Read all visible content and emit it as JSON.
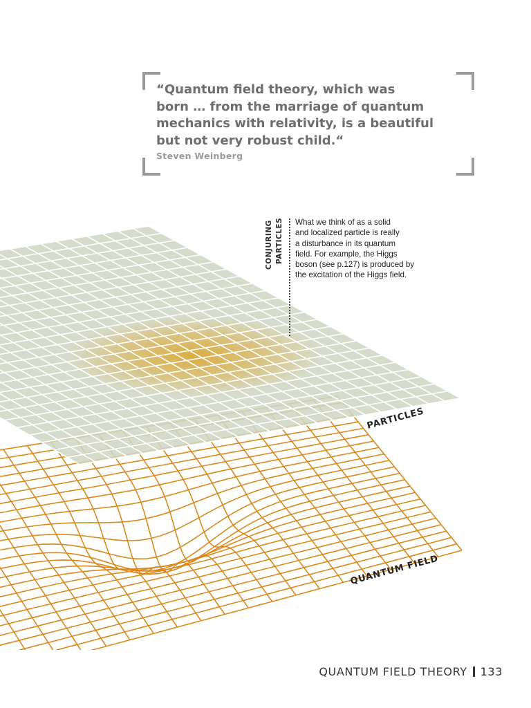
{
  "quote": {
    "lines": [
      "“Quantum field theory, which was",
      "born … from the marriage of quantum",
      "mechanics with relativity, is a beautiful",
      "but not very robust child.“"
    ],
    "author": "Steven Weinberg"
  },
  "sidebar": {
    "heading_line1": "CONJURING",
    "heading_line2": "PARTICLES",
    "body_lines": [
      "What we think of as a solid",
      "and localized particle is really",
      "a disturbance in its quantum",
      "field. For example, the Higgs",
      "boson (see p.127) is produced by",
      "the excitation of the Higgs field."
    ]
  },
  "figure": {
    "particles_label": "PARTICLES",
    "field_label": "QUANTUM FIELD",
    "colors": {
      "particle_plane": "#cfd6c4",
      "particle_grid": "#ffffff",
      "glow": "#dca52a",
      "field_grid": "#d9891c"
    }
  },
  "footer": {
    "section": "QUANTUM FIELD THEORY",
    "page": "133"
  }
}
